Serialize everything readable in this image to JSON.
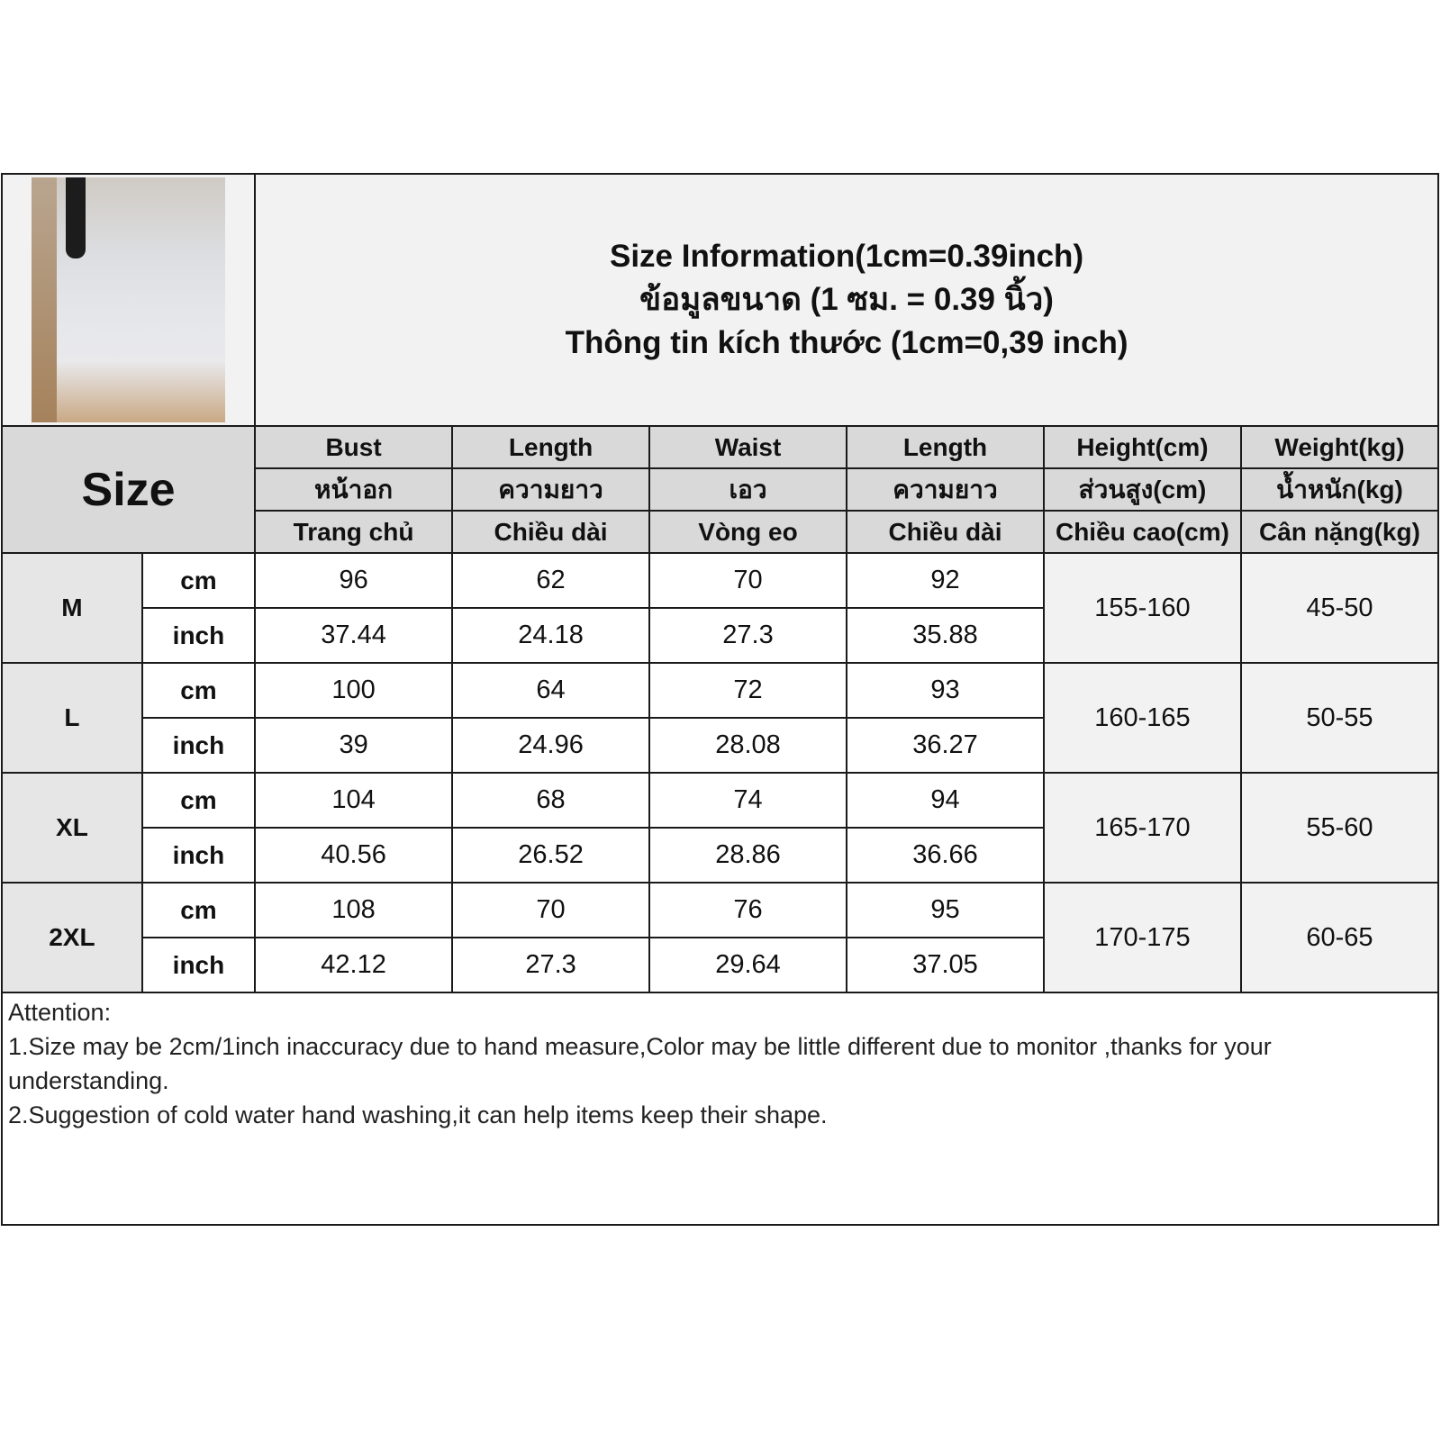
{
  "title": {
    "line_en": "Size Information(1cm=0.39inch)",
    "line_th": "ข้อมูลขนาด (1 ซม. = 0.39 นิ้ว)",
    "line_vi": "Thông tin kích thước (1cm=0,39 inch)"
  },
  "header": {
    "size_label": "Size",
    "columns": [
      {
        "en": "Bust",
        "th": "หน้าอก",
        "vi": "Trang chủ"
      },
      {
        "en": "Length",
        "th": "ความยาว",
        "vi": "Chiều dài"
      },
      {
        "en": "Waist",
        "th": "เอว",
        "vi": "Vòng eo"
      },
      {
        "en": "Length",
        "th": "ความยาว",
        "vi": "Chiều dài"
      },
      {
        "en": "Height(cm)",
        "th": "ส่วนสูง(cm)",
        "vi": "Chiều cao(cm)"
      },
      {
        "en": "Weight(kg)",
        "th": "น้ำหนัก(kg)",
        "vi": "Cân nặng(kg)"
      }
    ]
  },
  "units": {
    "cm": "cm",
    "inch": "inch"
  },
  "rows": [
    {
      "size": "M",
      "cm": [
        "96",
        "62",
        "70",
        "92"
      ],
      "inch": [
        "37.44",
        "24.18",
        "27.3",
        "35.88"
      ],
      "height": "155-160",
      "weight": "45-50"
    },
    {
      "size": "L",
      "cm": [
        "100",
        "64",
        "72",
        "93"
      ],
      "inch": [
        "39",
        "24.96",
        "28.08",
        "36.27"
      ],
      "height": "160-165",
      "weight": "50-55"
    },
    {
      "size": "XL",
      "cm": [
        "104",
        "68",
        "74",
        "94"
      ],
      "inch": [
        "40.56",
        "26.52",
        "28.86",
        "36.66"
      ],
      "height": "165-170",
      "weight": "55-60"
    },
    {
      "size": "2XL",
      "cm": [
        "108",
        "70",
        "76",
        "95"
      ],
      "inch": [
        "42.12",
        "27.3",
        "29.64",
        "37.05"
      ],
      "height": "170-175",
      "weight": "60-65"
    }
  ],
  "notes": {
    "heading": "Attention:",
    "items": [
      "1.Size may be 2cm/1inch inaccuracy due to hand measure,Color may be little different due to monitor ,thanks for your understanding.",
      "2.Suggestion of cold water hand washing,it can help items keep their shape."
    ]
  }
}
